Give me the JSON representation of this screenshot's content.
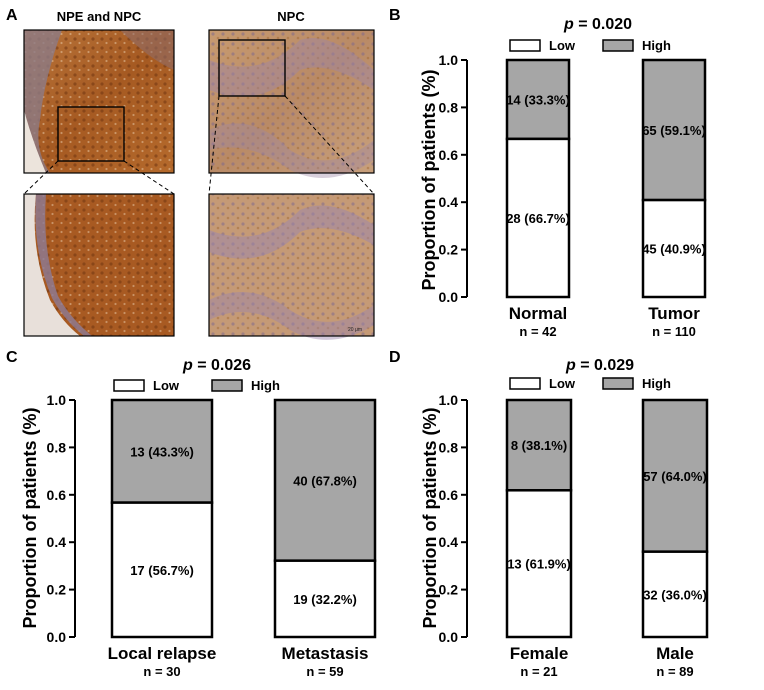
{
  "panel_a": {
    "letter": "A",
    "tl_title": "NPE and NPC",
    "tr_title": "NPC",
    "scale_bar": "20 μm"
  },
  "legend": {
    "low": "Low",
    "high": "High"
  },
  "tick_labels": [
    "0.0",
    "0.2",
    "0.4",
    "0.6",
    "0.8",
    "1.0"
  ],
  "colors": {
    "low": "#ffffff",
    "high": "#a6a6a6",
    "stroke": "#000000"
  },
  "chart_data": [
    {
      "panel": "B",
      "type": "bar",
      "stacked": true,
      "title": "p = 0.020",
      "title_prefix": "p",
      "title_value": "= 0.020",
      "ylabel": "Proportion of patients (%)",
      "ylim": [
        0,
        1.0
      ],
      "legend_position": "top",
      "categories": [
        "Normal",
        "Tumor"
      ],
      "n_labels": [
        "n = 42",
        "n = 110"
      ],
      "series": [
        {
          "name": "Low",
          "values": [
            0.667,
            0.409
          ],
          "labels": [
            "28 (66.7%)",
            "45 (40.9%)"
          ]
        },
        {
          "name": "High",
          "values": [
            0.333,
            0.591
          ],
          "labels": [
            "14 (33.3%)",
            "65 (59.1%)"
          ]
        }
      ]
    },
    {
      "panel": "C",
      "type": "bar",
      "stacked": true,
      "title": "p = 0.026",
      "title_prefix": "p",
      "title_value": "= 0.026",
      "ylabel": "Proportion of patients (%)",
      "ylim": [
        0,
        1.0
      ],
      "legend_position": "top",
      "categories": [
        "Local relapse",
        "Metastasis"
      ],
      "n_labels": [
        "n = 30",
        "n = 59"
      ],
      "series": [
        {
          "name": "Low",
          "values": [
            0.567,
            0.322
          ],
          "labels": [
            "17 (56.7%)",
            "19 (32.2%)"
          ]
        },
        {
          "name": "High",
          "values": [
            0.433,
            0.678
          ],
          "labels": [
            "13 (43.3%)",
            "40 (67.8%)"
          ]
        }
      ]
    },
    {
      "panel": "D",
      "type": "bar",
      "stacked": true,
      "title": "p = 0.029",
      "title_prefix": "p",
      "title_value": "= 0.029",
      "ylabel": "Proportion of patients (%)",
      "ylim": [
        0,
        1.0
      ],
      "legend_position": "top",
      "categories": [
        "Female",
        "Male"
      ],
      "n_labels": [
        "n = 21",
        "n = 89"
      ],
      "series": [
        {
          "name": "Low",
          "values": [
            0.619,
            0.36
          ],
          "labels": [
            "13 (61.9%)",
            "32 (36.0%)"
          ]
        },
        {
          "name": "High",
          "values": [
            0.381,
            0.64
          ],
          "labels": [
            "8 (38.1%)",
            "57 (64.0%)"
          ]
        }
      ]
    }
  ]
}
